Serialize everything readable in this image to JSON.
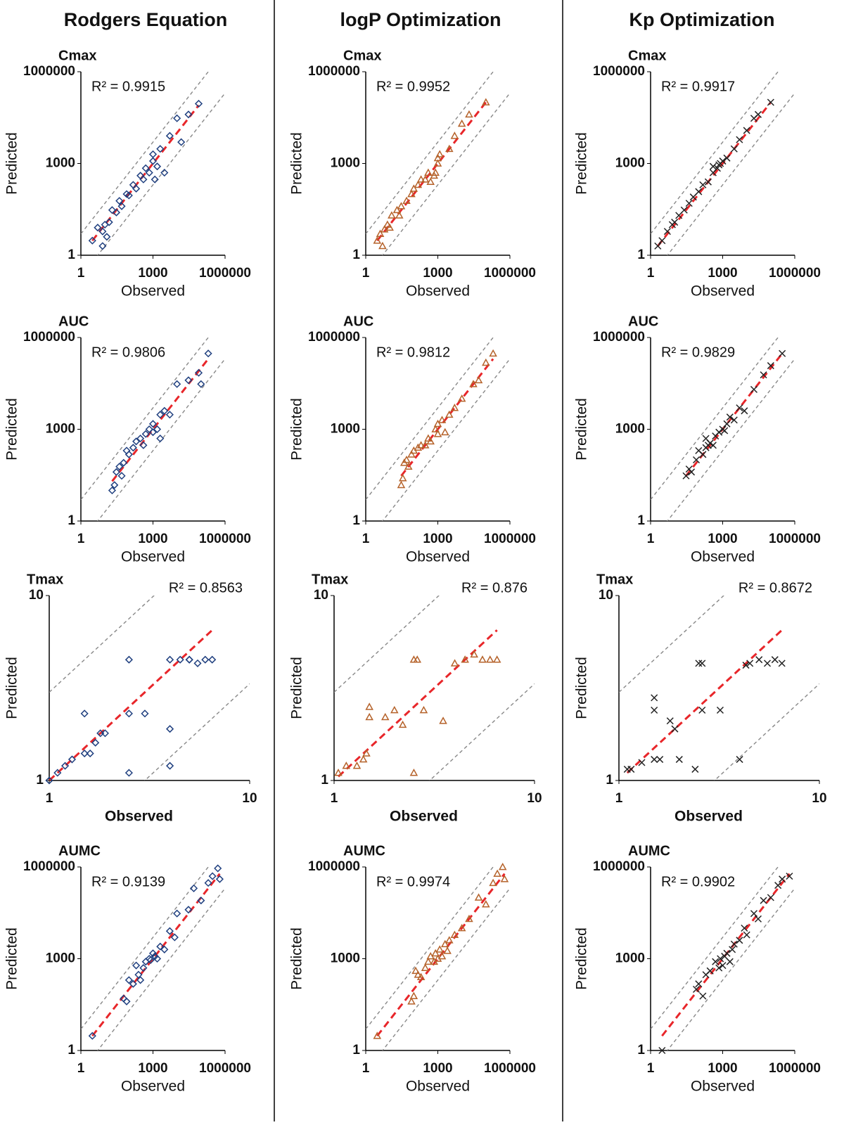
{
  "columns": [
    "Rodgers Equation",
    "logP Optimization",
    "Kp Optimization"
  ],
  "chart_data": [
    {
      "type": "scatter",
      "title": "Cmax",
      "annotation": "R² = 0.9915",
      "annotation_corner": "top-left",
      "xlabel": "Observed",
      "ylabel": "Predicted",
      "log_scale": true,
      "xlim": [
        1,
        1000000
      ],
      "ylim": [
        1,
        1000000
      ],
      "xticks": [
        1,
        1000,
        1000000
      ],
      "yticks": [
        1,
        1000,
        1000000
      ],
      "reference_fold": 5,
      "trendline_color": "#e8262a",
      "series": [
        {
          "color": "#1f3f7f",
          "marker": "diamond",
          "x": [
            3,
            5,
            8,
            10,
            15,
            20,
            30,
            40,
            50,
            80,
            100,
            150,
            200,
            300,
            400,
            500,
            700,
            1000,
            1000,
            1200,
            1500,
            2000,
            3000,
            5000,
            10000,
            15000,
            30000,
            80000,
            8,
            12
          ],
          "y": [
            3,
            8,
            6,
            10,
            12,
            30,
            25,
            60,
            40,
            100,
            90,
            200,
            150,
            400,
            300,
            700,
            500,
            1200,
            2000,
            300,
            800,
            3000,
            500,
            8000,
            30000,
            5000,
            40000,
            90000,
            2,
            4
          ]
        }
      ]
    },
    {
      "type": "scatter",
      "title": "Cmax",
      "annotation": "R² = 0.9952",
      "annotation_corner": "top-left",
      "xlabel": "Observed",
      "ylabel": "Predicted",
      "log_scale": true,
      "xlim": [
        1,
        1000000
      ],
      "ylim": [
        1,
        1000000
      ],
      "xticks": [
        1,
        1000,
        1000000
      ],
      "yticks": [
        1,
        1000,
        1000000
      ],
      "reference_fold": 5,
      "trendline_color": "#e8262a",
      "series": [
        {
          "color": "#b5622a",
          "marker": "triangle",
          "x": [
            3,
            4,
            5,
            6,
            8,
            10,
            12,
            20,
            25,
            30,
            50,
            80,
            100,
            150,
            200,
            300,
            400,
            500,
            700,
            800,
            1000,
            1000,
            1200,
            3000,
            5000,
            10000,
            20000,
            100000
          ],
          "y": [
            3,
            5,
            2,
            7,
            10,
            8,
            20,
            30,
            20,
            40,
            60,
            100,
            150,
            200,
            300,
            300,
            500,
            250,
            400,
            500,
            1000,
            1500,
            2000,
            3000,
            8000,
            20000,
            40000,
            100000
          ]
        }
      ]
    },
    {
      "type": "scatter",
      "title": "Cmax",
      "annotation": "R² = 0.9917",
      "annotation_corner": "top-left",
      "xlabel": "Observed",
      "ylabel": "Predicted",
      "log_scale": true,
      "xlim": [
        1,
        1000000
      ],
      "ylim": [
        1,
        1000000
      ],
      "xticks": [
        1,
        1000,
        1000000
      ],
      "yticks": [
        1,
        1000,
        1000000
      ],
      "reference_fold": 5,
      "trendline_color": "#e8262a",
      "series": [
        {
          "color": "#222222",
          "marker": "cross",
          "x": [
            2,
            3,
            5,
            8,
            10,
            15,
            25,
            40,
            60,
            100,
            150,
            250,
            400,
            600,
            800,
            1000,
            1500,
            3000,
            5000,
            10000,
            20000,
            30000,
            100000,
            400,
            700
          ],
          "y": [
            2,
            3,
            6,
            10,
            12,
            20,
            30,
            50,
            80,
            120,
            200,
            250,
            500,
            700,
            1000,
            1200,
            1500,
            3000,
            6000,
            12000,
            30000,
            40000,
            100000,
            800,
            900
          ]
        }
      ]
    },
    {
      "type": "scatter",
      "title": "AUC",
      "annotation": "R² = 0.9806",
      "annotation_corner": "top-left",
      "xlabel": "Observed",
      "ylabel": "Predicted",
      "log_scale": true,
      "xlim": [
        1,
        1000000
      ],
      "ylim": [
        1,
        1000000
      ],
      "xticks": [
        1,
        1000,
        1000000
      ],
      "yticks": [
        1,
        1000,
        1000000
      ],
      "reference_fold": 5,
      "trendline_color": "#e8262a",
      "series": [
        {
          "color": "#1f3f7f",
          "marker": "diamond",
          "x": [
            20,
            25,
            30,
            40,
            50,
            60,
            80,
            100,
            150,
            200,
            300,
            400,
            500,
            700,
            1000,
            1000,
            1500,
            2000,
            2000,
            3000,
            5000,
            10000,
            30000,
            80000,
            100000,
            200000
          ],
          "y": [
            10,
            15,
            40,
            60,
            30,
            80,
            200,
            150,
            250,
            400,
            500,
            300,
            700,
            1000,
            800,
            1500,
            1000,
            500,
            3000,
            4000,
            3000,
            30000,
            40000,
            70000,
            30000,
            300000
          ]
        }
      ]
    },
    {
      "type": "scatter",
      "title": "AUC",
      "annotation": "R² = 0.9812",
      "annotation_corner": "top-left",
      "xlabel": "Observed",
      "ylabel": "Predicted",
      "log_scale": true,
      "xlim": [
        1,
        1000000
      ],
      "ylim": [
        1,
        1000000
      ],
      "xticks": [
        1,
        1000,
        1000000
      ],
      "yticks": [
        1,
        1000,
        1000000
      ],
      "reference_fold": 5,
      "trendline_color": "#e8262a",
      "series": [
        {
          "color": "#b5622a",
          "marker": "triangle",
          "x": [
            30,
            35,
            40,
            50,
            60,
            80,
            100,
            150,
            200,
            300,
            400,
            500,
            800,
            1000,
            1000,
            1500,
            2000,
            3000,
            5000,
            10000,
            30000,
            50000,
            100000,
            200000
          ],
          "y": [
            15,
            25,
            80,
            100,
            60,
            150,
            200,
            250,
            300,
            300,
            500,
            400,
            1000,
            700,
            1500,
            2000,
            800,
            3000,
            5000,
            10000,
            30000,
            40000,
            150000,
            300000
          ]
        }
      ]
    },
    {
      "type": "scatter",
      "title": "AUC",
      "annotation": "R² = 0.9829",
      "annotation_corner": "top-left",
      "xlabel": "Observed",
      "ylabel": "Predicted",
      "log_scale": true,
      "xlim": [
        1,
        1000000
      ],
      "ylim": [
        1,
        1000000
      ],
      "xticks": [
        1,
        1000,
        1000000
      ],
      "yticks": [
        1,
        1000,
        1000000
      ],
      "reference_fold": 5,
      "trendline_color": "#e8262a",
      "series": [
        {
          "color": "#222222",
          "marker": "cross",
          "x": [
            30,
            40,
            50,
            80,
            100,
            150,
            200,
            250,
            300,
            500,
            700,
            1000,
            1200,
            1500,
            2000,
            3000,
            5000,
            8000,
            20000,
            50000,
            100000,
            300000,
            200,
            400
          ],
          "y": [
            30,
            50,
            40,
            100,
            200,
            150,
            250,
            300,
            350,
            600,
            800,
            1000,
            900,
            1500,
            2500,
            2000,
            5000,
            4000,
            20000,
            60000,
            120000,
            300000,
            500,
            300
          ]
        }
      ]
    },
    {
      "type": "scatter",
      "title": "Tmax",
      "annotation": "R² = 0.8563",
      "annotation_corner": "top-right",
      "xlabel": "Observed",
      "xlabel_bold": true,
      "ylabel": "Predicted",
      "log_scale": true,
      "xlim": [
        1,
        10
      ],
      "ylim": [
        1,
        10
      ],
      "xticks": [
        1,
        10
      ],
      "yticks": [
        1,
        10
      ],
      "reference_fold": 3,
      "trendline_color": "#e8262a",
      "series": [
        {
          "color": "#1f3f7f",
          "marker": "diamond",
          "x": [
            1,
            1.1,
            1.2,
            1.3,
            1.5,
            1.5,
            1.6,
            1.7,
            1.8,
            1.9,
            2.5,
            2.5,
            2.5,
            3,
            4,
            4,
            4,
            4.5,
            5,
            5,
            5.5,
            6,
            6.5
          ],
          "y": [
            1,
            1.1,
            1.2,
            1.3,
            1.4,
            2.3,
            1.4,
            1.6,
            1.8,
            1.8,
            1.1,
            4.5,
            2.3,
            2.3,
            1.9,
            1.2,
            4.5,
            4.5,
            4.5,
            4.5,
            4.3,
            4.5,
            4.5
          ]
        }
      ]
    },
    {
      "type": "scatter",
      "title": "Tmax",
      "annotation": "R² = 0.876",
      "annotation_corner": "top-right",
      "xlabel": "Observed",
      "xlabel_bold": true,
      "ylabel": "Predicted",
      "log_scale": true,
      "xlim": [
        1,
        10
      ],
      "ylim": [
        1,
        10
      ],
      "xticks": [
        1,
        10
      ],
      "yticks": [
        1,
        10
      ],
      "reference_fold": 3,
      "trendline_color": "#e8262a",
      "series": [
        {
          "color": "#b5622a",
          "marker": "triangle",
          "x": [
            1.05,
            1.15,
            1.3,
            1.4,
            1.45,
            1.5,
            1.5,
            1.8,
            2,
            2.2,
            2.5,
            2.5,
            2.6,
            2.8,
            3.5,
            4,
            4.5,
            5,
            5.5,
            6,
            6.5
          ],
          "y": [
            1.1,
            1.2,
            1.2,
            1.3,
            1.4,
            2.2,
            2.5,
            2.2,
            2.4,
            2,
            1.1,
            4.5,
            4.5,
            2.4,
            2.1,
            4.3,
            4.5,
            4.8,
            4.5,
            4.5,
            4.5
          ]
        }
      ]
    },
    {
      "type": "scatter",
      "title": "Tmax",
      "annotation": "R² = 0.8672",
      "annotation_corner": "top-right",
      "xlabel": "Observed",
      "xlabel_bold": true,
      "ylabel": "Predicted",
      "log_scale": true,
      "xlim": [
        1,
        10
      ],
      "ylim": [
        1,
        10
      ],
      "xticks": [
        1,
        10
      ],
      "yticks": [
        1,
        10
      ],
      "reference_fold": 3,
      "trendline_color": "#e8262a",
      "series": [
        {
          "color": "#222222",
          "marker": "cross",
          "x": [
            1.1,
            1.15,
            1.3,
            1.5,
            1.6,
            1.5,
            1.5,
            1.8,
            1.9,
            2,
            2.4,
            2.5,
            2.6,
            2.6,
            3.2,
            4,
            4.3,
            4.5,
            5,
            5.5,
            6,
            6.5
          ],
          "y": [
            1.15,
            1.15,
            1.25,
            1.3,
            1.3,
            2.8,
            2.4,
            2.1,
            1.9,
            1.3,
            1.15,
            4.3,
            4.3,
            2.4,
            2.4,
            1.3,
            4.2,
            4.3,
            4.5,
            4.3,
            4.5,
            4.3
          ]
        }
      ]
    },
    {
      "type": "scatter",
      "title": "AUMC",
      "annotation": "R² = 0.9139",
      "annotation_corner": "top-left",
      "xlabel": "Observed",
      "ylabel": "Predicted",
      "log_scale": true,
      "xlim": [
        1,
        1000000
      ],
      "ylim": [
        1,
        1000000
      ],
      "xticks": [
        1,
        1000,
        1000000
      ],
      "yticks": [
        1,
        1000,
        1000000
      ],
      "reference_fold": 5,
      "trendline_color": "#e8262a",
      "series": [
        {
          "color": "#1f3f7f",
          "marker": "diamond",
          "x": [
            3,
            60,
            80,
            100,
            150,
            200,
            250,
            300,
            400,
            500,
            700,
            800,
            1000,
            1200,
            1500,
            2000,
            3000,
            5000,
            8000,
            10000,
            30000,
            50000,
            100000,
            200000,
            300000,
            500000,
            600000
          ],
          "y": [
            3,
            50,
            40,
            200,
            150,
            600,
            300,
            200,
            500,
            800,
            1000,
            900,
            1500,
            1200,
            1000,
            2500,
            2000,
            8000,
            5000,
            30000,
            40000,
            200000,
            80000,
            300000,
            500000,
            900000,
            400000
          ]
        }
      ]
    },
    {
      "type": "scatter",
      "title": "AUMC",
      "annotation": "R² = 0.9974",
      "annotation_corner": "top-left",
      "xlabel": "Observed",
      "ylabel": "Predicted",
      "log_scale": true,
      "xlim": [
        1,
        1000000
      ],
      "ylim": [
        1,
        1000000
      ],
      "xticks": [
        1,
        1000,
        1000000
      ],
      "yticks": [
        1,
        1000,
        1000000
      ],
      "reference_fold": 5,
      "trendline_color": "#e8262a",
      "series": [
        {
          "color": "#b5622a",
          "marker": "triangle",
          "x": [
            3,
            80,
            100,
            120,
            150,
            200,
            300,
            400,
            500,
            700,
            800,
            1000,
            1200,
            1500,
            2000,
            2500,
            3000,
            5000,
            10000,
            20000,
            50000,
            100000,
            200000,
            300000,
            500000,
            600000
          ],
          "y": [
            3,
            40,
            60,
            400,
            300,
            250,
            500,
            800,
            1200,
            800,
            1500,
            1000,
            2000,
            1200,
            3000,
            1800,
            4000,
            6000,
            10000,
            20000,
            100000,
            60000,
            300000,
            600000,
            1000000,
            400000
          ]
        }
      ]
    },
    {
      "type": "scatter",
      "title": "AUMC",
      "annotation": "R² = 0.9902",
      "annotation_corner": "top-left",
      "xlabel": "Observed",
      "ylabel": "Predicted",
      "log_scale": true,
      "xlim": [
        1,
        1000000
      ],
      "ylim": [
        1,
        1000000
      ],
      "xticks": [
        1,
        1000,
        1000000
      ],
      "yticks": [
        1,
        1000,
        1000000
      ],
      "reference_fold": 5,
      "trendline_color": "#e8262a",
      "series": [
        {
          "color": "#222222",
          "marker": "cross",
          "x": [
            3,
            80,
            100,
            150,
            200,
            300,
            500,
            700,
            800,
            1000,
            1200,
            1500,
            2000,
            2500,
            3000,
            5000,
            8000,
            10000,
            20000,
            30000,
            50000,
            100000,
            200000,
            300000,
            600000
          ],
          "y": [
            1,
            100,
            150,
            60,
            300,
            400,
            800,
            500,
            1000,
            600,
            1200,
            1500,
            800,
            2000,
            3000,
            4000,
            10000,
            6000,
            30000,
            20000,
            80000,
            100000,
            250000,
            400000,
            500000
          ]
        }
      ]
    }
  ]
}
